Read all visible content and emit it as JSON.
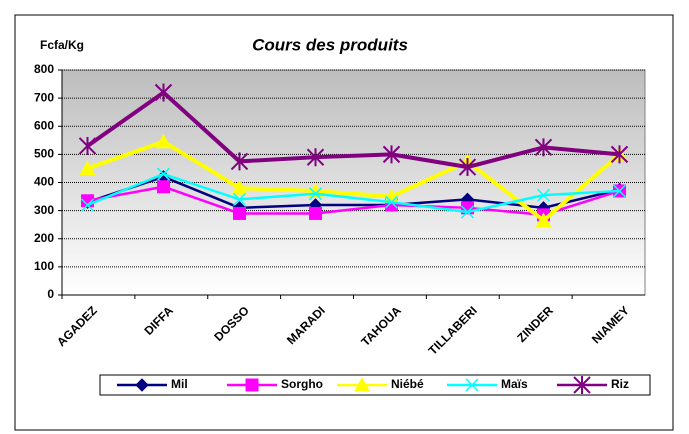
{
  "chart_data": {
    "type": "line",
    "title": "Cours des produits",
    "y_label": "Fcfa/Kg",
    "categories": [
      "AGADEZ",
      "DIFFA",
      "DOSSO",
      "MARADI",
      "TAHOUA",
      "TILLABERI",
      "ZINDER",
      "NIAMEY"
    ],
    "series": [
      {
        "name": "Mil",
        "color": "#000080",
        "marker": "diamond",
        "values": [
          330,
          420,
          310,
          320,
          320,
          340,
          310,
          375
        ]
      },
      {
        "name": "Sorgho",
        "color": "#ff00ff",
        "marker": "square",
        "values": [
          335,
          385,
          290,
          290,
          320,
          310,
          285,
          370
        ]
      },
      {
        "name": "Niébé",
        "color": "#ffff00",
        "marker": "triangle",
        "values": [
          450,
          545,
          380,
          370,
          350,
          475,
          265,
          500
        ]
      },
      {
        "name": "Maïs",
        "color": "#00ffff",
        "marker": "x",
        "values": [
          320,
          430,
          340,
          360,
          330,
          295,
          355,
          370
        ]
      },
      {
        "name": "Riz",
        "color": "#800080",
        "marker": "star",
        "values": [
          530,
          720,
          475,
          490,
          500,
          455,
          525,
          500
        ]
      }
    ],
    "ylim": [
      0,
      800
    ],
    "yticks": [
      0,
      100,
      200,
      300,
      400,
      500,
      600,
      700,
      800
    ],
    "grid": true,
    "legend": "bottom"
  }
}
